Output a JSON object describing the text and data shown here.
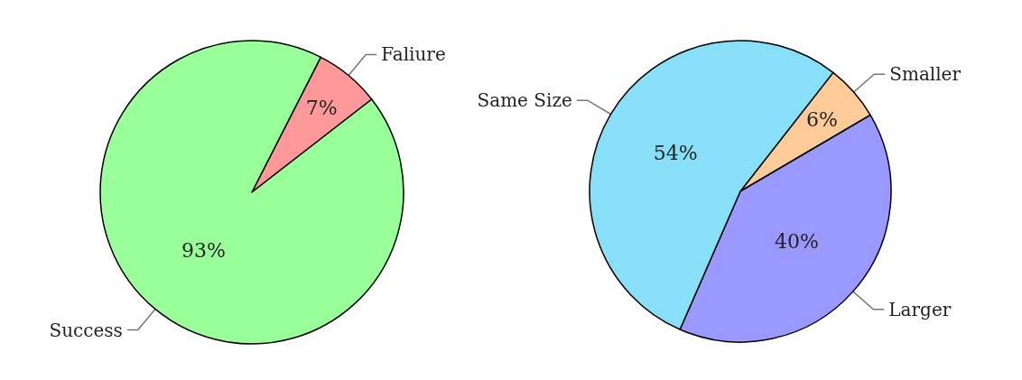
{
  "chart_data": [
    {
      "type": "pie",
      "categories": [
        "Faliure",
        "Success"
      ],
      "values": [
        7,
        93
      ],
      "colors": [
        "#ff9999",
        "#99ff99"
      ],
      "value_labels": [
        "7%",
        "93%"
      ]
    },
    {
      "type": "pie",
      "categories": [
        "Smaller",
        "Larger",
        "Same Size"
      ],
      "values": [
        6,
        40,
        54
      ],
      "colors": [
        "#ffcc99",
        "#9999ff",
        "#88e0f8"
      ],
      "value_labels": [
        "6%",
        "40%",
        "54%"
      ]
    }
  ]
}
